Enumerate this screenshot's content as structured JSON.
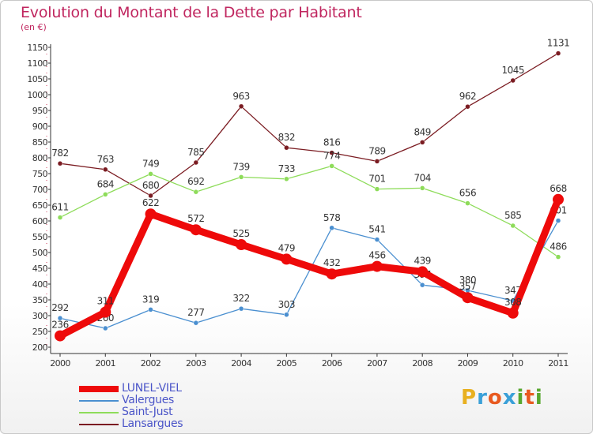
{
  "header": {
    "title": "Evolution du Montant de la Dette par Habitant",
    "unit": "(en €)"
  },
  "logo": {
    "letters": [
      "P",
      "r",
      "o",
      "x",
      "i",
      "t",
      "i"
    ],
    "colors": [
      "#e8b020",
      "#3aa0d8",
      "#e85a20",
      "#3aa0d8",
      "#58a830",
      "#e85a20",
      "#58a830"
    ]
  },
  "chart_data": {
    "type": "line",
    "title": "Evolution du Montant de la Dette par Habitant",
    "ylabel": "(en €)",
    "xlabel": "",
    "categories": [
      "2000",
      "2001",
      "2002",
      "2003",
      "2004",
      "2005",
      "2006",
      "2007",
      "2008",
      "2009",
      "2010",
      "2011"
    ],
    "ylim": [
      200,
      1150
    ],
    "yticks": [
      200,
      250,
      300,
      350,
      400,
      450,
      500,
      550,
      600,
      650,
      700,
      750,
      800,
      850,
      900,
      950,
      1000,
      1050,
      1100,
      1150
    ],
    "grid": false,
    "legend_position": "bottom-left",
    "series": [
      {
        "name": "Lansargues",
        "color": "#7b1c22",
        "values": [
          782,
          763,
          680,
          785,
          963,
          832,
          816,
          789,
          849,
          962,
          1045,
          1131
        ]
      },
      {
        "name": "Saint-Just",
        "color": "#8edc5a",
        "values": [
          611,
          684,
          749,
          692,
          739,
          733,
          774,
          701,
          704,
          656,
          585,
          486
        ]
      },
      {
        "name": "Valergues",
        "color": "#4a8fd0",
        "values": [
          292,
          260,
          319,
          277,
          322,
          303,
          578,
          541,
          397,
          380,
          347,
          601
        ]
      },
      {
        "name": "LUNEL-VIEL",
        "color": "#ee0a0a",
        "values": [
          236,
          311,
          622,
          572,
          525,
          479,
          432,
          456,
          439,
          357,
          308,
          668
        ]
      }
    ]
  }
}
